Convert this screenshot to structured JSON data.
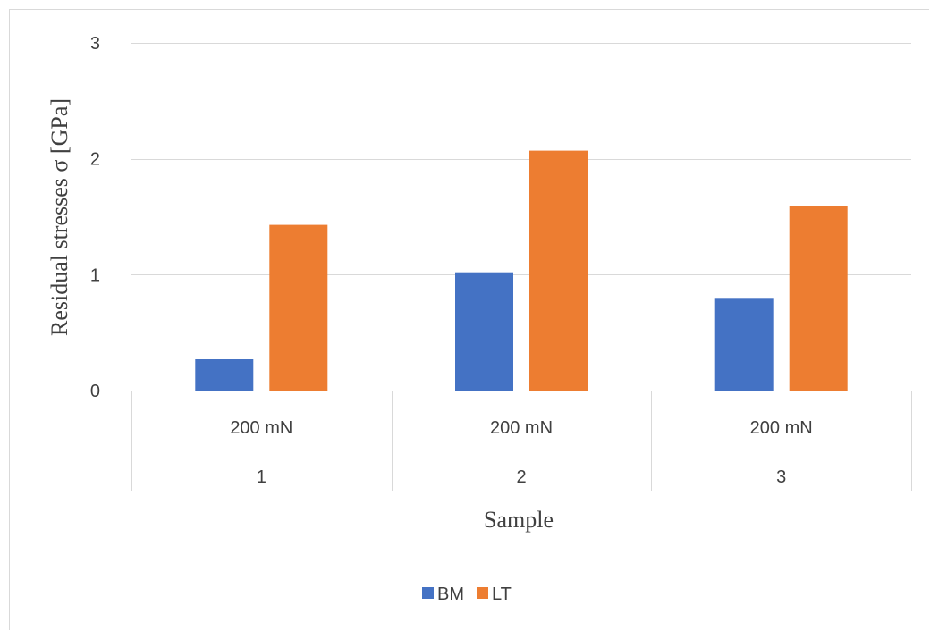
{
  "chart_data": {
    "type": "bar",
    "ylabel": "Residual stresses σ [GPa]",
    "xlabel": "Sample",
    "ylim": [
      0,
      3
    ],
    "yticks": [
      "0",
      "1",
      "2",
      "3"
    ],
    "categories": [
      {
        "sub": "200 mN",
        "group": "1"
      },
      {
        "sub": "200 mN",
        "group": "2"
      },
      {
        "sub": "200 mN",
        "group": "3"
      }
    ],
    "series": [
      {
        "name": "BM",
        "color": "#4472c4",
        "values": [
          0.27,
          1.02,
          0.8
        ]
      },
      {
        "name": "LT",
        "color": "#ed7d31",
        "values": [
          1.43,
          2.07,
          1.59
        ]
      }
    ],
    "grid": true,
    "legend_position": "bottom"
  }
}
